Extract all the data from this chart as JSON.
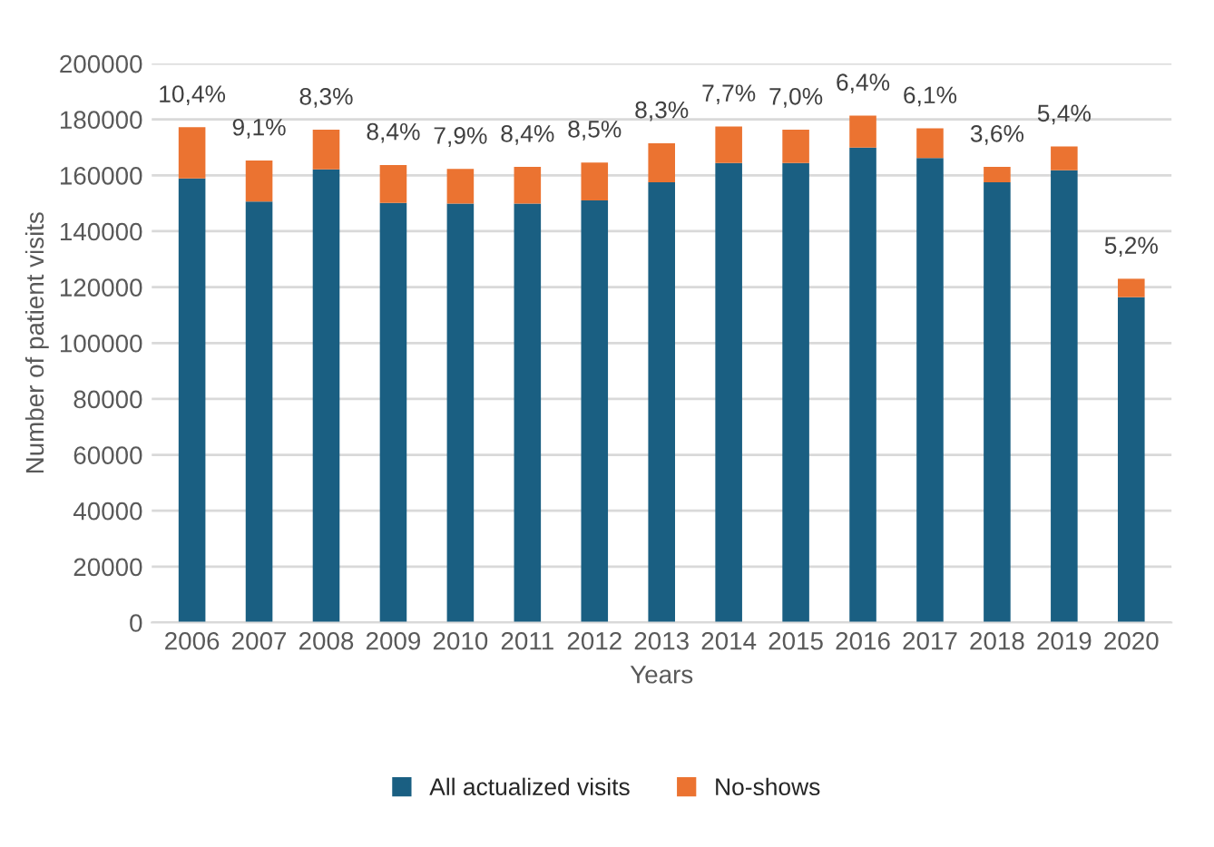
{
  "chart_data": {
    "type": "bar",
    "stacked": true,
    "xlabel": "Years",
    "ylabel": "Number of patient visits",
    "categories": [
      "2006",
      "2007",
      "2008",
      "2009",
      "2010",
      "2011",
      "2012",
      "2013",
      "2014",
      "2015",
      "2016",
      "2017",
      "2018",
      "2019",
      "2020"
    ],
    "series": [
      {
        "name": "All actualized visits",
        "color": "#1a5f82",
        "values": [
          158900,
          150600,
          162100,
          150100,
          149900,
          149900,
          151000,
          157500,
          164400,
          164400,
          169900,
          166200,
          157500,
          161800,
          116400
        ]
      },
      {
        "name": "No-shows",
        "color": "#eb7331",
        "values": [
          18300,
          14700,
          14200,
          13600,
          12400,
          13100,
          13600,
          14000,
          13100,
          11900,
          11500,
          10600,
          5500,
          8500,
          6600
        ]
      }
    ],
    "annotations": [
      {
        "text": "10,4%",
        "x": "2006",
        "y": 177200
      },
      {
        "text": "9,1%",
        "x": "2007",
        "y": 165300
      },
      {
        "text": "8,3%",
        "x": "2008",
        "y": 176300
      },
      {
        "text": "8,4%",
        "x": "2009",
        "y": 163700
      },
      {
        "text": "7,9%",
        "x": "2010",
        "y": 162300
      },
      {
        "text": "8,4%",
        "x": "2011",
        "y": 163000
      },
      {
        "text": "8,5%",
        "x": "2012",
        "y": 164600
      },
      {
        "text": "8,3%",
        "x": "2013",
        "y": 171500
      },
      {
        "text": "7,7%",
        "x": "2014",
        "y": 177500
      },
      {
        "text": "7,0%",
        "x": "2015",
        "y": 176300
      },
      {
        "text": "6,4%",
        "x": "2016",
        "y": 181400
      },
      {
        "text": "6,1%",
        "x": "2017",
        "y": 176800
      },
      {
        "text": "3,6%",
        "x": "2018",
        "y": 163000
      },
      {
        "text": "5,4%",
        "x": "2019",
        "y": 170300
      },
      {
        "text": "5,2%",
        "x": "2020",
        "y": 123000
      }
    ],
    "ylim": [
      0,
      200000
    ],
    "yticks": [
      0,
      20000,
      40000,
      60000,
      80000,
      100000,
      120000,
      140000,
      160000,
      180000,
      200000
    ],
    "grid": "y",
    "legend": "bottom"
  }
}
